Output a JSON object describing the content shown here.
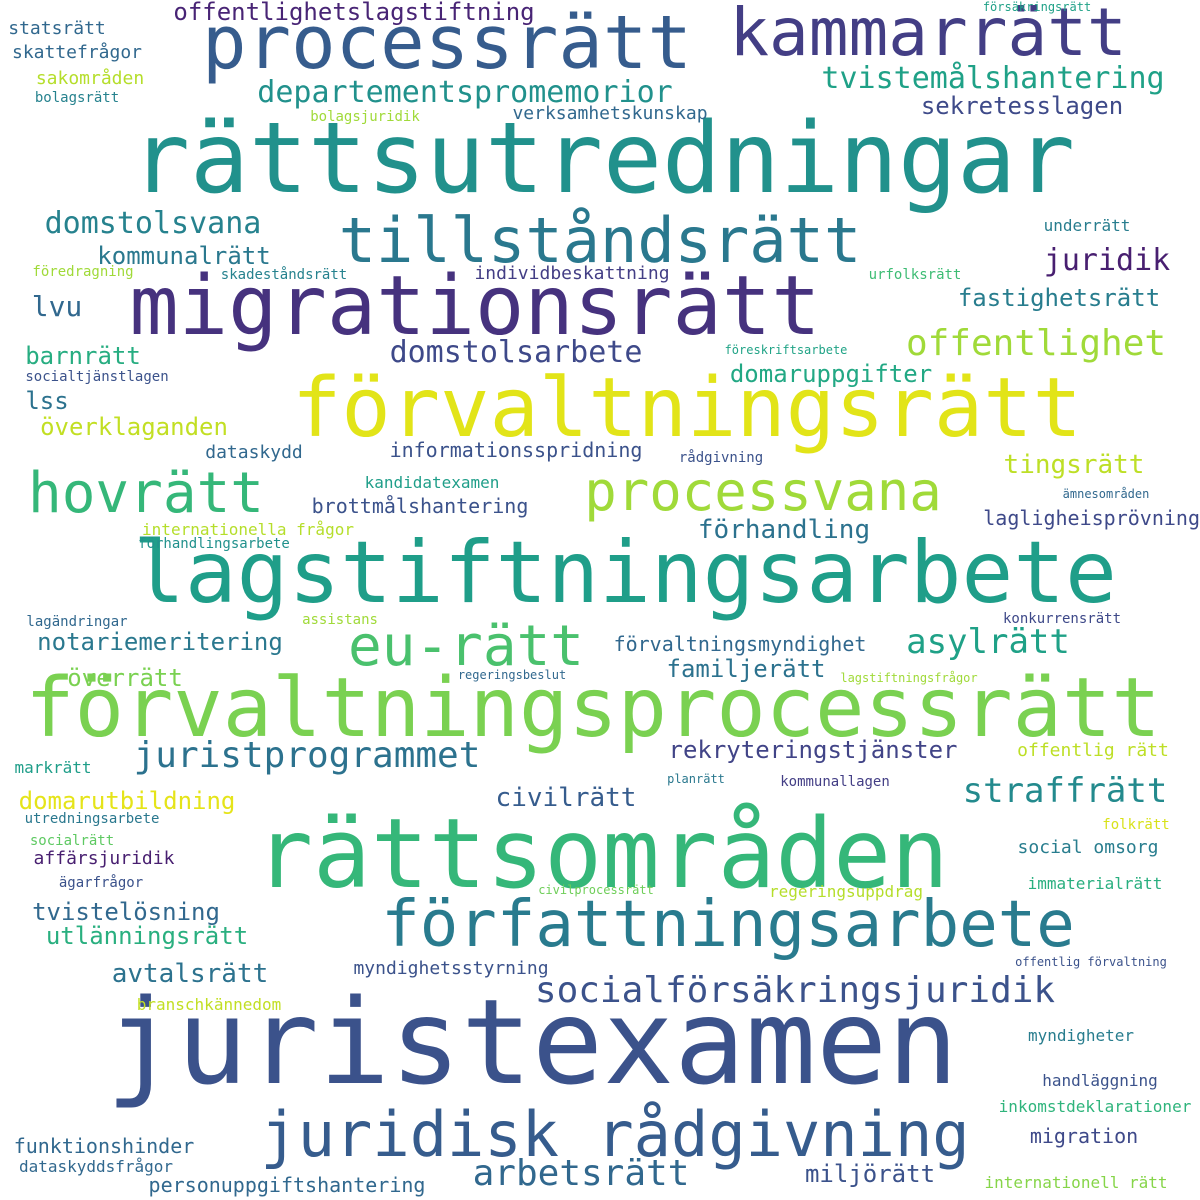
{
  "colors": {
    "background": "#ffffff",
    "palette": [
      "#440154",
      "#482878",
      "#3e4989",
      "#31688e",
      "#26828e",
      "#1f9e89",
      "#35b779",
      "#6ece58",
      "#b5de2b",
      "#fde725"
    ]
  },
  "words": [
    {
      "text": "rättsutredningar",
      "color": "#21918c"
    },
    {
      "text": "juristexamen",
      "color": "#3b528b"
    },
    {
      "text": "förvaltningsprocessrätt",
      "color": "#7ad151"
    },
    {
      "text": "rättsområden",
      "color": "#35b779"
    },
    {
      "text": "lagstiftningsarbete",
      "color": "#1f9e89"
    },
    {
      "text": "förvaltningsrätt",
      "color": "#e2e418"
    },
    {
      "text": "migrationsrätt",
      "color": "#46327e"
    },
    {
      "text": "processrätt",
      "color": "#365c8d"
    },
    {
      "text": "kammarrätt",
      "color": "#433e85"
    },
    {
      "text": "författningsarbete",
      "color": "#297b8e"
    },
    {
      "text": "juridisk rådgivning",
      "color": "#365c8d"
    },
    {
      "text": "tillståndsrätt",
      "color": "#2a788e"
    },
    {
      "text": "processvana",
      "color": "#a0da39"
    },
    {
      "text": "hovrätt",
      "color": "#35b779"
    },
    {
      "text": "eu-rätt",
      "color": "#4ac16d"
    },
    {
      "text": "socialförsäkringsjuridik",
      "color": "#3b528b"
    },
    {
      "text": "arbetsrätt",
      "color": "#31688e"
    },
    {
      "text": "juristprogrammet",
      "color": "#2c728e"
    },
    {
      "text": "offentlighet",
      "color": "#a0da39"
    },
    {
      "text": "domstolsarbete",
      "color": "#3e4989"
    },
    {
      "text": "departementspromemorior",
      "color": "#21918c"
    },
    {
      "text": "tvistemålshantering",
      "color": "#1fa187"
    },
    {
      "text": "straffrätt",
      "color": "#238a8d"
    },
    {
      "text": "asylrätt",
      "color": "#1fa187"
    },
    {
      "text": "juridik",
      "color": "#481f70"
    },
    {
      "text": "domstolsvana",
      "color": "#26828e"
    },
    {
      "text": "offentlighetslagstiftning",
      "color": "#482475"
    },
    {
      "text": "tingsrätt",
      "color": "#bddf26"
    },
    {
      "text": "förhandling",
      "color": "#2c728e"
    },
    {
      "text": "civilrätt",
      "color": "#365c8d"
    },
    {
      "text": "utlänningsrätt",
      "color": "#29af7f"
    },
    {
      "text": "avtalsrätt",
      "color": "#2c728e"
    },
    {
      "text": "notariemeritering",
      "color": "#2a788e"
    },
    {
      "text": "rekryteringstjänster",
      "color": "#414487"
    },
    {
      "text": "sekretesslagen",
      "color": "#3e4a89"
    },
    {
      "text": "fastighetsrätt",
      "color": "#287d8e"
    },
    {
      "text": "kommunalrätt",
      "color": "#2a788e"
    },
    {
      "text": "barnrätt",
      "color": "#27ad81"
    },
    {
      "text": "lvu",
      "color": "#31688e"
    },
    {
      "text": "lss",
      "color": "#2c728e"
    },
    {
      "text": "överklaganden",
      "color": "#c2df23"
    },
    {
      "text": "domaruppgifter",
      "color": "#22a884"
    },
    {
      "text": "domarutbildning",
      "color": "#e5e419"
    },
    {
      "text": "överrätt",
      "color": "#7ad151"
    },
    {
      "text": "familjerätt",
      "color": "#2c728e"
    },
    {
      "text": "tvistelösning",
      "color": "#31688e"
    },
    {
      "text": "miljörätt",
      "color": "#3b528b"
    },
    {
      "text": "informationsspridning",
      "color": "#3b528b"
    },
    {
      "text": "lagligheisprövning",
      "color": "#3e4989"
    },
    {
      "text": "brottmålshantering",
      "color": "#3b528b"
    },
    {
      "text": "personuppgiftshantering",
      "color": "#31688e"
    },
    {
      "text": "funktionshinder",
      "color": "#31688e"
    },
    {
      "text": "migration",
      "color": "#3e4989"
    },
    {
      "text": "förvaltningsmyndighet",
      "color": "#31688e"
    },
    {
      "text": "individbeskattning",
      "color": "#433e85"
    },
    {
      "text": "verksamhetskunskap",
      "color": "#31688e"
    },
    {
      "text": "statsrätt",
      "color": "#31688e"
    },
    {
      "text": "skattefrågor",
      "color": "#31688e"
    },
    {
      "text": "sakområden",
      "color": "#b5de2b"
    },
    {
      "text": "bolagsrätt",
      "color": "#26828e"
    },
    {
      "text": "bolagsjuridik",
      "color": "#a0da39"
    },
    {
      "text": "försäkringsrätt",
      "color": "#1fa187"
    },
    {
      "text": "underrätt",
      "color": "#287d8e"
    },
    {
      "text": "föredragning",
      "color": "#a0da39"
    },
    {
      "text": "skadeståndsrätt",
      "color": "#26828e"
    },
    {
      "text": "urfolksrätt",
      "color": "#3dbc74"
    },
    {
      "text": "föreskriftsarbete",
      "color": "#20a386"
    },
    {
      "text": "socialtjänstlagen",
      "color": "#3b528b"
    },
    {
      "text": "dataskydd",
      "color": "#31688e"
    },
    {
      "text": "rådgivning",
      "color": "#3b528b"
    },
    {
      "text": "kandidatexamen",
      "color": "#1f9e89"
    },
    {
      "text": "ämnesområden",
      "color": "#31688e"
    },
    {
      "text": "internationella frågor",
      "color": "#b5de2b"
    },
    {
      "text": "förhandlingsarbete",
      "color": "#21918c"
    },
    {
      "text": "lagändringar",
      "color": "#31688e"
    },
    {
      "text": "assistans",
      "color": "#a0da39"
    },
    {
      "text": "konkurrensrätt",
      "color": "#3e4989"
    },
    {
      "text": "regeringsbeslut",
      "color": "#31688e"
    },
    {
      "text": "lagstiftningsfrågor",
      "color": "#a0da39"
    },
    {
      "text": "offentlig rätt",
      "color": "#bddf26"
    },
    {
      "text": "markrätt",
      "color": "#1f9e89"
    },
    {
      "text": "planrätt",
      "color": "#2a788e"
    },
    {
      "text": "kommunallagen",
      "color": "#433e85"
    },
    {
      "text": "utredningsarbete",
      "color": "#2a788e"
    },
    {
      "text": "socialrätt",
      "color": "#5ec962"
    },
    {
      "text": "folkrätt",
      "color": "#d8e219"
    },
    {
      "text": "affärsjuridik",
      "color": "#481f70"
    },
    {
      "text": "social omsorg",
      "color": "#287d8e"
    },
    {
      "text": "ägarfrågor",
      "color": "#3b528b"
    },
    {
      "text": "civilprocessrätt",
      "color": "#6ece58"
    },
    {
      "text": "regeringsuppdrag",
      "color": "#b5de2b"
    },
    {
      "text": "immaterialrätt",
      "color": "#29af7f"
    },
    {
      "text": "myndighetsstyrning",
      "color": "#3b528b"
    },
    {
      "text": "branschkännedom",
      "color": "#c2df23"
    },
    {
      "text": "offentlig förvaltning",
      "color": "#3b528b"
    },
    {
      "text": "myndigheter",
      "color": "#287d8e"
    },
    {
      "text": "handläggning",
      "color": "#3b528b"
    },
    {
      "text": "inkomstdeklarationer",
      "color": "#2fb47c"
    },
    {
      "text": "dataskyddsfrågor",
      "color": "#31688e"
    },
    {
      "text": "internationell rätt",
      "color": "#86d549"
    }
  ]
}
